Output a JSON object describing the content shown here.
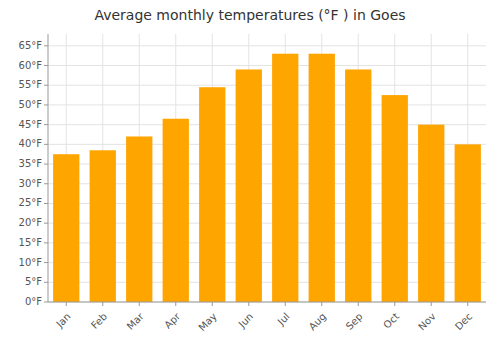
{
  "chart_data": {
    "type": "bar",
    "title": "Average monthly temperatures (°F ) in Goes",
    "categories": [
      "Jan",
      "Feb",
      "Mar",
      "Apr",
      "May",
      "Jun",
      "Jul",
      "Aug",
      "Sep",
      "Oct",
      "Nov",
      "Dec"
    ],
    "values": [
      37.5,
      38.5,
      42.0,
      46.5,
      54.5,
      59.0,
      63.0,
      63.0,
      59.0,
      52.5,
      45.0,
      40.0
    ],
    "color": "#FFA500",
    "ylim": [
      0,
      68
    ],
    "yticks": [
      {
        "value": 0,
        "label": "0°F"
      },
      {
        "value": 5,
        "label": "5°F"
      },
      {
        "value": 10,
        "label": "10°F"
      },
      {
        "value": 15,
        "label": "15°F"
      },
      {
        "value": 20,
        "label": "20°F"
      },
      {
        "value": 25,
        "label": "25°F"
      },
      {
        "value": 30,
        "label": "30°F"
      },
      {
        "value": 35,
        "label": "35°F"
      },
      {
        "value": 40,
        "label": "40°F"
      },
      {
        "value": 45,
        "label": "45°F"
      },
      {
        "value": 50,
        "label": "50°F"
      },
      {
        "value": 55,
        "label": "55°F"
      },
      {
        "value": 60,
        "label": "60°F"
      },
      {
        "value": 65,
        "label": "65°F"
      }
    ],
    "grid": true
  }
}
